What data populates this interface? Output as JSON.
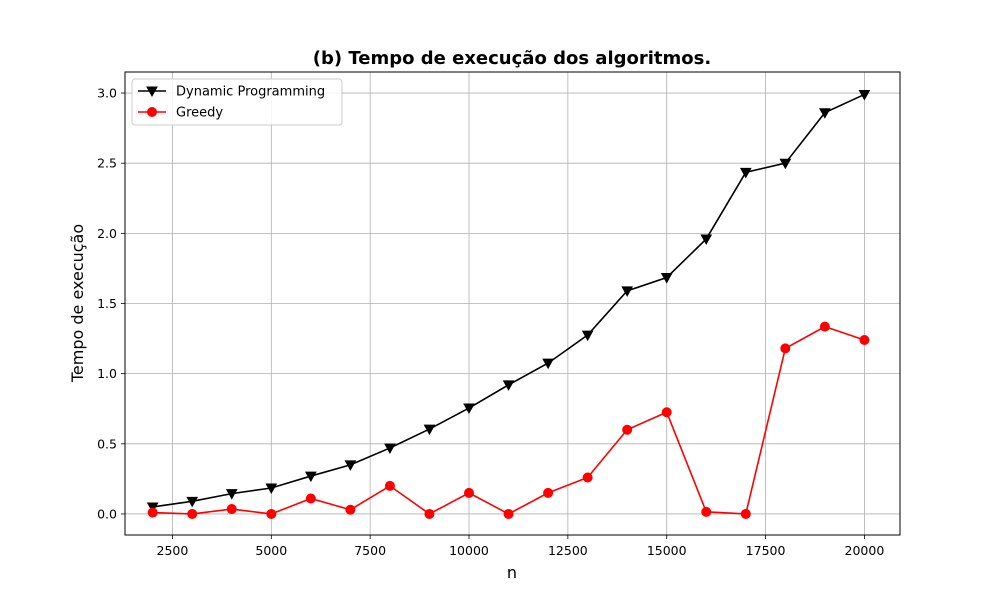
{
  "chart_data": {
    "type": "line",
    "title": "(b) Tempo de execução dos algoritmos.",
    "xlabel": "n",
    "ylabel": "Tempo de execução",
    "xlim": [
      1300,
      20900
    ],
    "ylim": [
      -0.15,
      3.15
    ],
    "x_ticks": [
      2500,
      5000,
      7500,
      10000,
      12500,
      15000,
      17500,
      20000
    ],
    "y_ticks": [
      0.0,
      0.5,
      1.0,
      1.5,
      2.0,
      2.5,
      3.0
    ],
    "x_tick_labels": [
      "2500",
      "5000",
      "7500",
      "10000",
      "12500",
      "15000",
      "17500",
      "20000"
    ],
    "y_tick_labels": [
      "0.0",
      "0.5",
      "1.0",
      "1.5",
      "2.0",
      "2.5",
      "3.0"
    ],
    "grid": true,
    "legend_position": "top-left",
    "x": [
      2000,
      3000,
      4000,
      5000,
      6000,
      7000,
      8000,
      9000,
      10000,
      11000,
      12000,
      13000,
      14000,
      15000,
      16000,
      17000,
      18000,
      19000,
      20000
    ],
    "series": [
      {
        "name": "Dynamic Programming",
        "color": "#000000",
        "marker": "triangle-down",
        "values": [
          0.05,
          0.09,
          0.145,
          0.185,
          0.27,
          0.35,
          0.47,
          0.605,
          0.755,
          0.92,
          1.075,
          1.275,
          1.59,
          1.685,
          1.96,
          2.435,
          2.5,
          2.86,
          2.99
        ]
      },
      {
        "name": "Greedy",
        "color": "#ff0000",
        "marker": "circle",
        "values": [
          0.01,
          0.0,
          0.035,
          0.0,
          0.11,
          0.03,
          0.2,
          0.0,
          0.15,
          0.0,
          0.15,
          0.26,
          0.6,
          0.725,
          0.015,
          0.0,
          1.18,
          1.335,
          1.24
        ]
      }
    ]
  }
}
